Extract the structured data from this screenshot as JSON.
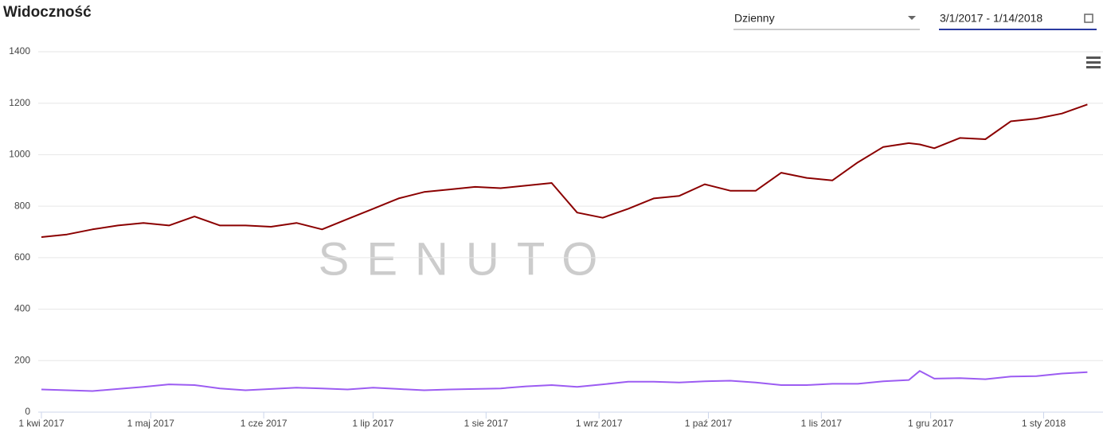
{
  "chart_data": {
    "type": "line",
    "title": "Widoczność",
    "controls": {
      "interval": "Dzienny",
      "date_range": "3/1/2017 - 1/14/2018"
    },
    "watermark": "SENUTO",
    "x": [
      "2017-04-01",
      "2017-04-08",
      "2017-04-15",
      "2017-04-22",
      "2017-04-29",
      "2017-05-06",
      "2017-05-13",
      "2017-05-20",
      "2017-05-27",
      "2017-06-03",
      "2017-06-10",
      "2017-06-17",
      "2017-06-24",
      "2017-07-01",
      "2017-07-08",
      "2017-07-15",
      "2017-07-22",
      "2017-07-29",
      "2017-08-05",
      "2017-08-12",
      "2017-08-19",
      "2017-08-26",
      "2017-09-02",
      "2017-09-09",
      "2017-09-16",
      "2017-09-23",
      "2017-09-30",
      "2017-10-07",
      "2017-10-14",
      "2017-10-21",
      "2017-10-28",
      "2017-11-04",
      "2017-11-11",
      "2017-11-18",
      "2017-11-25",
      "2017-11-28",
      "2017-12-02",
      "2017-12-09",
      "2017-12-16",
      "2017-12-23",
      "2017-12-30",
      "2018-01-06",
      "2018-01-13"
    ],
    "series": [
      {
        "color": "#8b0000",
        "values": [
          680,
          690,
          710,
          725,
          735,
          725,
          760,
          725,
          725,
          720,
          735,
          710,
          750,
          790,
          830,
          855,
          865,
          875,
          870,
          880,
          890,
          775,
          755,
          790,
          830,
          840,
          885,
          860,
          860,
          930,
          910,
          900,
          970,
          1030,
          1045,
          1040,
          1025,
          1065,
          1060,
          1130,
          1140,
          1160,
          1195
        ]
      },
      {
        "color": "#9c5cf2",
        "values": [
          88,
          85,
          82,
          90,
          98,
          108,
          105,
          92,
          85,
          90,
          95,
          92,
          88,
          95,
          90,
          85,
          88,
          90,
          92,
          100,
          105,
          98,
          108,
          118,
          118,
          115,
          120,
          122,
          115,
          105,
          105,
          110,
          110,
          120,
          125,
          160,
          130,
          132,
          128,
          138,
          140,
          150,
          155
        ]
      }
    ],
    "xlim": [
      "2017-04-01",
      "2018-01-14"
    ],
    "xticks": [
      {
        "value": "2017-04-01",
        "label": "1 kwi 2017"
      },
      {
        "value": "2017-05-01",
        "label": "1 maj 2017"
      },
      {
        "value": "2017-06-01",
        "label": "1 cze 2017"
      },
      {
        "value": "2017-07-01",
        "label": "1 lip 2017"
      },
      {
        "value": "2017-08-01",
        "label": "1 sie 2017"
      },
      {
        "value": "2017-09-01",
        "label": "1 wrz 2017"
      },
      {
        "value": "2017-10-01",
        "label": "1 paź 2017"
      },
      {
        "value": "2017-11-01",
        "label": "1 lis 2017"
      },
      {
        "value": "2017-12-01",
        "label": "1 gru 2017"
      },
      {
        "value": "2018-01-01",
        "label": "1 sty 2018"
      }
    ],
    "ylim": [
      0,
      1400
    ],
    "yticks": [
      0,
      200,
      400,
      600,
      800,
      1000,
      1200,
      1400
    ],
    "grid": true
  }
}
